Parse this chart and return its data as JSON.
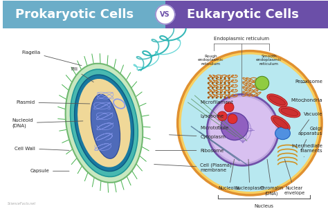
{
  "title_left": "Prokaryotic Cells",
  "title_right": "Eukaryotic Cells",
  "vs_text": "VS",
  "header_left_color": "#6badc8",
  "header_right_color": "#6b4fa8",
  "header_text_color": "#ffffff",
  "vs_circle_color": "#ffffff",
  "vs_text_color": "#6b4fa8",
  "background_color": "#ffffff",
  "label_fontsize": 5.0,
  "title_fontsize": 13
}
